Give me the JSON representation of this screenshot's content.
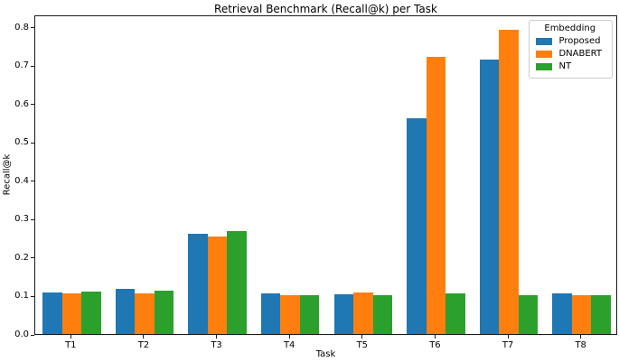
{
  "chart_data": {
    "type": "bar",
    "title": "Retrieval Benchmark (Recall@k) per Task",
    "xlabel": "Task",
    "ylabel": "Recall@k",
    "categories": [
      "T1",
      "T2",
      "T3",
      "T4",
      "T5",
      "T6",
      "T7",
      "T8"
    ],
    "series": [
      {
        "name": "Proposed",
        "color": "#1f77b4",
        "values": [
          0.109,
          0.117,
          0.26,
          0.107,
          0.103,
          0.563,
          0.714,
          0.106
        ]
      },
      {
        "name": "DNABERT",
        "color": "#ff7f0e",
        "values": [
          0.107,
          0.106,
          0.253,
          0.101,
          0.108,
          0.721,
          0.792,
          0.102
        ]
      },
      {
        "name": "NT",
        "color": "#2ca02c",
        "values": [
          0.11,
          0.112,
          0.268,
          0.101,
          0.101,
          0.106,
          0.101,
          0.102
        ]
      }
    ],
    "legend": {
      "title": "Embedding",
      "position": "upper right"
    },
    "yticks": [
      "0.0",
      "0.1",
      "0.2",
      "0.3",
      "0.4",
      "0.5",
      "0.6",
      "0.7",
      "0.8"
    ],
    "ylim": [
      0,
      0.832
    ],
    "grid": false
  }
}
